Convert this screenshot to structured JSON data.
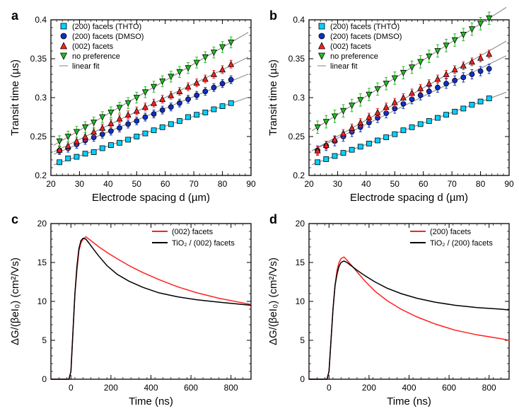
{
  "layout": {
    "panels": [
      "a",
      "b",
      "c",
      "d"
    ],
    "cols": 2,
    "rows": 2
  },
  "panel_a": {
    "type": "scatter",
    "label": "a",
    "xlabel": "Electrode spacing d (µm)",
    "ylabel": "Transit time (µs)",
    "label_fontsize": 15,
    "tick_fontsize": 12,
    "xlim": [
      20,
      90
    ],
    "ylim": [
      0.2,
      0.4
    ],
    "xtick_step": 10,
    "ytick_step": 0.05,
    "minor_xticks": 4,
    "minor_yticks": 4,
    "background": "#ffffff",
    "axis_color": "#000000",
    "fit_line_color": "#808080",
    "legend": {
      "fit_label": "linear fit",
      "fit_line_color": "#808080",
      "pos": "top-left"
    },
    "series": [
      {
        "label": "(200) facets (THTO)",
        "marker": "square",
        "color": "#00d2ff",
        "x": [
          23,
          26,
          29,
          32,
          35,
          38,
          41,
          44,
          47,
          50,
          53,
          56,
          59,
          62,
          65,
          68,
          71,
          74,
          77,
          80,
          83
        ],
        "y": [
          0.217,
          0.222,
          0.224,
          0.228,
          0.23,
          0.235,
          0.239,
          0.242,
          0.246,
          0.25,
          0.254,
          0.258,
          0.262,
          0.266,
          0.27,
          0.275,
          0.278,
          0.281,
          0.285,
          0.289,
          0.293
        ],
        "err": 0.003
      },
      {
        "label": "(200) facets (DMSO)",
        "marker": "circle",
        "color": "#1030c0",
        "x": [
          23,
          26,
          29,
          32,
          35,
          38,
          41,
          44,
          47,
          50,
          53,
          56,
          59,
          62,
          65,
          68,
          71,
          74,
          77,
          80,
          83
        ],
        "y": [
          0.232,
          0.235,
          0.24,
          0.245,
          0.249,
          0.253,
          0.257,
          0.261,
          0.266,
          0.27,
          0.275,
          0.279,
          0.284,
          0.288,
          0.293,
          0.298,
          0.303,
          0.308,
          0.313,
          0.318,
          0.323
        ],
        "err": 0.005
      },
      {
        "label": "(002) facets",
        "marker": "triangle-up",
        "color": "#ff2020",
        "x": [
          23,
          26,
          29,
          32,
          35,
          38,
          41,
          44,
          47,
          50,
          53,
          56,
          59,
          62,
          65,
          68,
          71,
          74,
          77,
          80,
          83
        ],
        "y": [
          0.233,
          0.238,
          0.244,
          0.25,
          0.256,
          0.261,
          0.267,
          0.273,
          0.278,
          0.283,
          0.288,
          0.293,
          0.298,
          0.303,
          0.308,
          0.314,
          0.319,
          0.324,
          0.33,
          0.336,
          0.343
        ],
        "err": 0.005
      },
      {
        "label": "no preference",
        "marker": "triangle-down",
        "color": "#20c020",
        "x": [
          23,
          26,
          29,
          32,
          35,
          38,
          41,
          44,
          47,
          50,
          53,
          56,
          59,
          62,
          65,
          68,
          71,
          74,
          77,
          80,
          83
        ],
        "y": [
          0.244,
          0.25,
          0.256,
          0.262,
          0.268,
          0.275,
          0.281,
          0.287,
          0.293,
          0.3,
          0.307,
          0.314,
          0.321,
          0.327,
          0.333,
          0.338,
          0.345,
          0.352,
          0.358,
          0.365,
          0.371
        ],
        "err": 0.007
      }
    ]
  },
  "panel_b": {
    "type": "scatter",
    "label": "b",
    "xlabel": "Electrode spacing d (µm)",
    "ylabel": "Transit time (µs)",
    "label_fontsize": 15,
    "tick_fontsize": 12,
    "xlim": [
      20,
      90
    ],
    "ylim": [
      0.2,
      0.4
    ],
    "xtick_step": 10,
    "ytick_step": 0.05,
    "minor_xticks": 4,
    "minor_yticks": 4,
    "background": "#ffffff",
    "axis_color": "#000000",
    "fit_line_color": "#808080",
    "legend": {
      "fit_label": "linear fit",
      "fit_line_color": "#808080",
      "pos": "top-left"
    },
    "series": [
      {
        "label": "(200) facets (THTO)",
        "marker": "square",
        "color": "#00d2ff",
        "x": [
          23,
          26,
          29,
          32,
          35,
          38,
          41,
          44,
          47,
          50,
          53,
          56,
          59,
          62,
          65,
          68,
          71,
          74,
          77,
          80,
          83
        ],
        "y": [
          0.217,
          0.221,
          0.225,
          0.229,
          0.233,
          0.237,
          0.241,
          0.245,
          0.249,
          0.253,
          0.258,
          0.262,
          0.266,
          0.27,
          0.274,
          0.278,
          0.282,
          0.286,
          0.291,
          0.295,
          0.299
        ],
        "err": 0.003
      },
      {
        "label": "(200) facets (DMSO)",
        "marker": "circle",
        "color": "#1030c0",
        "x": [
          23,
          26,
          29,
          32,
          35,
          38,
          41,
          44,
          47,
          50,
          53,
          56,
          59,
          62,
          65,
          68,
          71,
          74,
          77,
          80,
          83
        ],
        "y": [
          0.232,
          0.238,
          0.244,
          0.25,
          0.256,
          0.262,
          0.268,
          0.274,
          0.28,
          0.286,
          0.292,
          0.298,
          0.303,
          0.308,
          0.313,
          0.318,
          0.322,
          0.326,
          0.33,
          0.334,
          0.337
        ],
        "err": 0.006
      },
      {
        "label": "(002) facets",
        "marker": "triangle-up",
        "color": "#ff2020",
        "x": [
          23,
          26,
          29,
          32,
          35,
          38,
          41,
          44,
          47,
          50,
          53,
          56,
          59,
          62,
          65,
          68,
          71,
          74,
          77,
          80,
          83
        ],
        "y": [
          0.232,
          0.239,
          0.246,
          0.254,
          0.261,
          0.268,
          0.275,
          0.281,
          0.288,
          0.294,
          0.3,
          0.306,
          0.312,
          0.318,
          0.324,
          0.33,
          0.336,
          0.341,
          0.346,
          0.351,
          0.356
        ],
        "err": 0.005
      },
      {
        "label": "no preference",
        "marker": "triangle-down",
        "color": "#20c020",
        "x": [
          23,
          26,
          29,
          32,
          35,
          38,
          41,
          44,
          47,
          50,
          53,
          56,
          59,
          62,
          65,
          68,
          71,
          74,
          77,
          80,
          83
        ],
        "y": [
          0.262,
          0.269,
          0.276,
          0.283,
          0.29,
          0.297,
          0.304,
          0.311,
          0.318,
          0.325,
          0.332,
          0.339,
          0.346,
          0.353,
          0.36,
          0.367,
          0.374,
          0.381,
          0.388,
          0.395,
          0.402
        ],
        "err": 0.008
      }
    ]
  },
  "panel_c": {
    "type": "line",
    "label": "c",
    "xlabel": "Time (ns)",
    "ylabel": "ΔG/(βeI₀) (cm²/Vs)",
    "label_fontsize": 15,
    "tick_fontsize": 12,
    "xlim": [
      -100,
      900
    ],
    "ylim": [
      0,
      20
    ],
    "xtick_step": 200,
    "ytick_step": 5,
    "minor_xticks": 4,
    "minor_yticks": 4,
    "background": "#ffffff",
    "axis_color": "#000000",
    "legend_pos": "top-right",
    "series": [
      {
        "label": "(002)  facets",
        "color": "#ff2020",
        "linewidth": 1.5,
        "x": [
          -100,
          -50,
          -10,
          0,
          10,
          20,
          30,
          40,
          50,
          60,
          75,
          90,
          110,
          140,
          180,
          230,
          290,
          360,
          440,
          530,
          630,
          740,
          860,
          900
        ],
        "y": [
          0,
          0,
          0,
          1,
          6,
          11,
          14,
          16.5,
          17.5,
          18,
          18.3,
          18,
          17.6,
          17,
          16.3,
          15.5,
          14.6,
          13.7,
          12.8,
          11.9,
          11.1,
          10.4,
          9.8,
          9.6
        ]
      },
      {
        "label": "TiO₂ / (002) facets",
        "color": "#000000",
        "linewidth": 1.5,
        "x": [
          -100,
          -50,
          -10,
          0,
          10,
          20,
          30,
          40,
          50,
          60,
          75,
          90,
          110,
          140,
          180,
          230,
          290,
          360,
          440,
          530,
          630,
          740,
          860,
          900
        ],
        "y": [
          0,
          0,
          0,
          1,
          6,
          11,
          14.5,
          16.8,
          17.8,
          18.1,
          18,
          17.5,
          16.8,
          15.8,
          14.6,
          13.5,
          12.6,
          11.8,
          11.1,
          10.6,
          10.2,
          9.9,
          9.6,
          9.5
        ]
      }
    ]
  },
  "panel_d": {
    "type": "line",
    "label": "d",
    "xlabel": "Time (ns)",
    "ylabel": "ΔG/(βeI₀) (cm²/Vs)",
    "label_fontsize": 15,
    "tick_fontsize": 12,
    "xlim": [
      -100,
      900
    ],
    "ylim": [
      0,
      20
    ],
    "xtick_step": 200,
    "ytick_step": 5,
    "minor_xticks": 4,
    "minor_yticks": 4,
    "background": "#ffffff",
    "axis_color": "#000000",
    "legend_pos": "top-right",
    "series": [
      {
        "label": "(200)  facets",
        "color": "#ff2020",
        "linewidth": 1.5,
        "x": [
          -100,
          -50,
          -10,
          0,
          10,
          20,
          30,
          40,
          50,
          60,
          75,
          90,
          110,
          140,
          180,
          230,
          290,
          360,
          440,
          530,
          630,
          740,
          860,
          900
        ],
        "y": [
          0,
          0,
          0,
          1,
          5,
          9,
          12,
          14,
          15,
          15.5,
          15.7,
          15.3,
          14.7,
          13.8,
          12.6,
          11.3,
          10.1,
          9.0,
          8.0,
          7.1,
          6.3,
          5.7,
          5.2,
          5.0
        ]
      },
      {
        "label": "TiO₂ / (200) facets",
        "color": "#000000",
        "linewidth": 1.5,
        "x": [
          -100,
          -50,
          -10,
          0,
          10,
          20,
          30,
          40,
          50,
          60,
          75,
          90,
          110,
          140,
          180,
          230,
          290,
          360,
          440,
          530,
          630,
          740,
          860,
          900
        ],
        "y": [
          0,
          0,
          0,
          1,
          5,
          9,
          12,
          13.5,
          14.5,
          15,
          15.2,
          15,
          14.6,
          14,
          13.3,
          12.5,
          11.7,
          11,
          10.4,
          9.9,
          9.5,
          9.2,
          9.0,
          8.9
        ]
      }
    ]
  }
}
